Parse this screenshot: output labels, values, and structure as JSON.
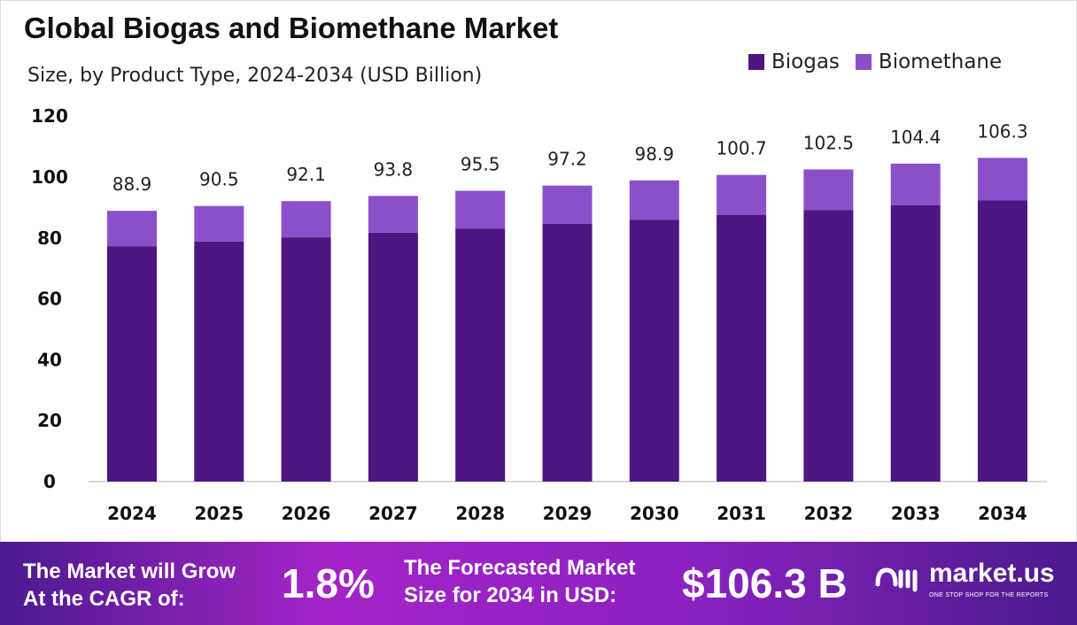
{
  "chart_data": {
    "type": "bar",
    "stacked": true,
    "title": "Global Biogas and Biomethane Market",
    "subtitle": "Size, by Product Type, 2024-2034 (USD Billion)",
    "categories": [
      "2024",
      "2025",
      "2026",
      "2027",
      "2028",
      "2029",
      "2030",
      "2031",
      "2032",
      "2033",
      "2034"
    ],
    "series": [
      {
        "name": "Biogas",
        "color": "#4d1680",
        "values": [
          77.3,
          78.8,
          80.2,
          81.7,
          83.1,
          84.6,
          86.0,
          87.5,
          89.2,
          90.7,
          92.4
        ]
      },
      {
        "name": "Biomethane",
        "color": "#8b4fcc",
        "values": [
          11.6,
          11.7,
          11.9,
          12.1,
          12.4,
          12.6,
          12.9,
          13.2,
          13.3,
          13.7,
          13.9
        ]
      }
    ],
    "totals": [
      "88.9",
      "90.5",
      "92.1",
      "93.8",
      "95.5",
      "97.2",
      "98.9",
      "100.7",
      "102.5",
      "104.4",
      "106.3"
    ],
    "ylim": [
      0,
      120
    ],
    "yticks": [
      "0",
      "20",
      "40",
      "60",
      "80",
      "100",
      "120"
    ],
    "grid": false,
    "legend": "top-right"
  },
  "footer": {
    "cagr_text_1": "The Market will Grow",
    "cagr_text_2": "At the CAGR of:",
    "cagr_value": "1.8%",
    "forecast_text_1": "The Forecasted Market",
    "forecast_text_2": "Size for 2034 in USD:",
    "forecast_value": "$106.3 B",
    "logo_text": "market.us",
    "logo_tagline": "ONE STOP SHOP FOR THE REPORTS"
  }
}
